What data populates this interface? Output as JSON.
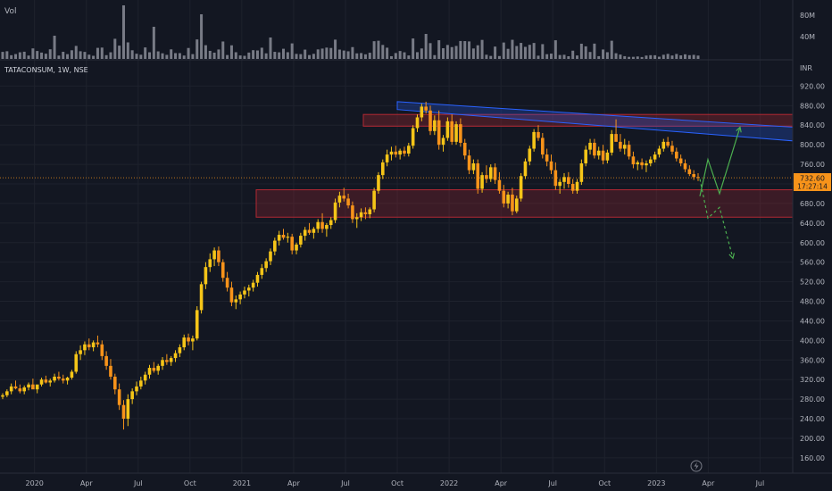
{
  "volume_pane": {
    "label": "Vol",
    "scale_labels": [
      "80M",
      "40M"
    ]
  },
  "symbol_label": "TATACONSUM, 1W, NSE",
  "currency_label": "INR",
  "price_axis": {
    "ticks": [
      920,
      880,
      840,
      800,
      760,
      720,
      680,
      640,
      600,
      560,
      520,
      480,
      440,
      400,
      360,
      320,
      280,
      240,
      200,
      160
    ],
    "tick_labels": [
      "920.00",
      "880.00",
      "840.00",
      "800.00",
      "760.00",
      "720.00",
      "680.00",
      "640.00",
      "600.00",
      "560.00",
      "520.00",
      "480.00",
      "440.00",
      "400.00",
      "360.00",
      "320.00",
      "280.00",
      "240.00",
      "200.00",
      "160.00"
    ]
  },
  "last_price": {
    "value": "732.60",
    "countdown": "17:27:14"
  },
  "time_axis": {
    "labels": [
      "2020",
      "Apr",
      "Jul",
      "Oct",
      "2021",
      "Apr",
      "Jul",
      "Oct",
      "2022",
      "Apr",
      "Jul",
      "Oct",
      "2023",
      "Apr",
      "Jul"
    ]
  },
  "colors": {
    "background": "#131722",
    "grid": "#1e222d",
    "text": "#b2b5be",
    "candle_up": "#f5c518",
    "candle_down": "#f7931a",
    "volume": "#787b86",
    "channel": "#2962ff",
    "zone": "#b22833",
    "bull_path": "#4caf50",
    "bear_path": "#4caf50",
    "last_price_line": "#f7931a"
  },
  "chart_data": {
    "type": "candlestick",
    "timeframe": "1W",
    "y_unit": "INR",
    "ylim": [
      140,
      940
    ],
    "x_range": [
      "2019-11",
      "2023-08"
    ],
    "candles_ohlc": [
      [
        285,
        292,
        280,
        288
      ],
      [
        288,
        300,
        284,
        296
      ],
      [
        296,
        312,
        290,
        306
      ],
      [
        306,
        318,
        300,
        302
      ],
      [
        302,
        310,
        292,
        296
      ],
      [
        296,
        308,
        290,
        304
      ],
      [
        304,
        314,
        298,
        310
      ],
      [
        310,
        322,
        304,
        300
      ],
      [
        300,
        308,
        292,
        310
      ],
      [
        310,
        324,
        306,
        320
      ],
      [
        320,
        328,
        312,
        314
      ],
      [
        314,
        322,
        306,
        318
      ],
      [
        318,
        332,
        314,
        326
      ],
      [
        326,
        336,
        318,
        322
      ],
      [
        322,
        330,
        312,
        318
      ],
      [
        318,
        326,
        310,
        324
      ],
      [
        324,
        340,
        320,
        336
      ],
      [
        336,
        378,
        332,
        372
      ],
      [
        372,
        390,
        360,
        380
      ],
      [
        380,
        398,
        370,
        392
      ],
      [
        392,
        404,
        380,
        386
      ],
      [
        386,
        400,
        378,
        396
      ],
      [
        396,
        410,
        386,
        392
      ],
      [
        392,
        400,
        360,
        368
      ],
      [
        368,
        378,
        340,
        348
      ],
      [
        348,
        362,
        320,
        326
      ],
      [
        326,
        332,
        290,
        300
      ],
      [
        300,
        312,
        258,
        268
      ],
      [
        268,
        278,
        218,
        240
      ],
      [
        240,
        290,
        225,
        280
      ],
      [
        280,
        302,
        270,
        296
      ],
      [
        296,
        316,
        288,
        306
      ],
      [
        306,
        326,
        300,
        318
      ],
      [
        318,
        336,
        310,
        330
      ],
      [
        330,
        350,
        322,
        344
      ],
      [
        344,
        356,
        334,
        338
      ],
      [
        338,
        352,
        330,
        348
      ],
      [
        348,
        366,
        340,
        360
      ],
      [
        360,
        372,
        350,
        356
      ],
      [
        356,
        368,
        348,
        364
      ],
      [
        364,
        380,
        356,
        374
      ],
      [
        374,
        392,
        366,
        386
      ],
      [
        386,
        412,
        380,
        406
      ],
      [
        406,
        414,
        390,
        398
      ],
      [
        398,
        410,
        380,
        404
      ],
      [
        404,
        470,
        400,
        462
      ],
      [
        462,
        520,
        455,
        515
      ],
      [
        515,
        560,
        505,
        550
      ],
      [
        550,
        578,
        540,
        566
      ],
      [
        566,
        590,
        552,
        584
      ],
      [
        584,
        592,
        552,
        560
      ],
      [
        560,
        566,
        520,
        528
      ],
      [
        528,
        540,
        500,
        508
      ],
      [
        508,
        520,
        470,
        478
      ],
      [
        478,
        492,
        464,
        484
      ],
      [
        484,
        500,
        474,
        494
      ],
      [
        494,
        510,
        486,
        502
      ],
      [
        502,
        514,
        490,
        508
      ],
      [
        508,
        524,
        500,
        518
      ],
      [
        518,
        540,
        510,
        534
      ],
      [
        534,
        556,
        526,
        548
      ],
      [
        548,
        568,
        540,
        562
      ],
      [
        562,
        588,
        554,
        582
      ],
      [
        582,
        610,
        574,
        604
      ],
      [
        604,
        624,
        594,
        616
      ],
      [
        616,
        628,
        606,
        610
      ],
      [
        610,
        620,
        600,
        612
      ],
      [
        612,
        618,
        576,
        584
      ],
      [
        584,
        600,
        576,
        596
      ],
      [
        596,
        620,
        590,
        614
      ],
      [
        614,
        632,
        604,
        626
      ],
      [
        626,
        640,
        616,
        620
      ],
      [
        620,
        632,
        608,
        628
      ],
      [
        628,
        648,
        620,
        642
      ],
      [
        642,
        660,
        620,
        628
      ],
      [
        628,
        640,
        612,
        636
      ],
      [
        636,
        652,
        628,
        646
      ],
      [
        646,
        690,
        640,
        682
      ],
      [
        682,
        704,
        672,
        696
      ],
      [
        696,
        712,
        684,
        690
      ],
      [
        690,
        700,
        670,
        676
      ],
      [
        676,
        684,
        640,
        648
      ],
      [
        648,
        660,
        630,
        652
      ],
      [
        652,
        670,
        644,
        662
      ],
      [
        662,
        672,
        648,
        658
      ],
      [
        658,
        672,
        650,
        668
      ],
      [
        668,
        712,
        662,
        706
      ],
      [
        706,
        744,
        700,
        738
      ],
      [
        738,
        770,
        730,
        764
      ],
      [
        764,
        790,
        756,
        780
      ],
      [
        780,
        796,
        768,
        786
      ],
      [
        786,
        798,
        774,
        780
      ],
      [
        780,
        792,
        770,
        788
      ],
      [
        788,
        796,
        776,
        782
      ],
      [
        782,
        804,
        776,
        798
      ],
      [
        798,
        840,
        792,
        834
      ],
      [
        834,
        862,
        826,
        856
      ],
      [
        856,
        884,
        848,
        878
      ],
      [
        878,
        888,
        864,
        870
      ],
      [
        870,
        880,
        820,
        828
      ],
      [
        828,
        860,
        820,
        850
      ],
      [
        850,
        870,
        790,
        800
      ],
      [
        800,
        820,
        786,
        814
      ],
      [
        814,
        856,
        808,
        848
      ],
      [
        848,
        862,
        800,
        806
      ],
      [
        806,
        848,
        800,
        842
      ],
      [
        842,
        854,
        796,
        804
      ],
      [
        804,
        812,
        770,
        778
      ],
      [
        778,
        790,
        740,
        748
      ],
      [
        748,
        770,
        740,
        762
      ],
      [
        762,
        770,
        700,
        710
      ],
      [
        710,
        744,
        702,
        738
      ],
      [
        738,
        758,
        722,
        730
      ],
      [
        730,
        760,
        724,
        754
      ],
      [
        754,
        762,
        720,
        728
      ],
      [
        728,
        744,
        700,
        706
      ],
      [
        706,
        718,
        672,
        680
      ],
      [
        680,
        704,
        670,
        698
      ],
      [
        698,
        712,
        656,
        664
      ],
      [
        664,
        696,
        660,
        690
      ],
      [
        690,
        742,
        684,
        736
      ],
      [
        736,
        772,
        730,
        766
      ],
      [
        766,
        798,
        758,
        792
      ],
      [
        792,
        832,
        786,
        826
      ],
      [
        826,
        840,
        808,
        814
      ],
      [
        814,
        824,
        772,
        780
      ],
      [
        780,
        792,
        756,
        766
      ],
      [
        766,
        780,
        740,
        748
      ],
      [
        748,
        764,
        708,
        716
      ],
      [
        716,
        730,
        700,
        724
      ],
      [
        724,
        742,
        710,
        734
      ],
      [
        734,
        744,
        712,
        720
      ],
      [
        720,
        730,
        700,
        706
      ],
      [
        706,
        730,
        700,
        724
      ],
      [
        724,
        770,
        718,
        762
      ],
      [
        762,
        798,
        756,
        790
      ],
      [
        790,
        812,
        780,
        804
      ],
      [
        804,
        812,
        772,
        778
      ],
      [
        778,
        796,
        770,
        788
      ],
      [
        788,
        800,
        760,
        768
      ],
      [
        768,
        790,
        762,
        784
      ],
      [
        784,
        830,
        778,
        822
      ],
      [
        822,
        852,
        814,
        806
      ],
      [
        806,
        822,
        786,
        792
      ],
      [
        792,
        812,
        780,
        800
      ],
      [
        800,
        808,
        770,
        776
      ],
      [
        776,
        786,
        752,
        760
      ],
      [
        760,
        768,
        748,
        764
      ],
      [
        764,
        772,
        750,
        758
      ],
      [
        758,
        768,
        744,
        762
      ],
      [
        762,
        776,
        756,
        770
      ],
      [
        770,
        786,
        764,
        780
      ],
      [
        780,
        798,
        774,
        792
      ],
      [
        792,
        812,
        786,
        806
      ],
      [
        806,
        816,
        794,
        798
      ],
      [
        798,
        808,
        780,
        786
      ],
      [
        786,
        794,
        766,
        772
      ],
      [
        772,
        780,
        756,
        762
      ],
      [
        762,
        770,
        744,
        750
      ],
      [
        750,
        758,
        736,
        740
      ],
      [
        740,
        748,
        728,
        734
      ],
      [
        734,
        742,
        726,
        732.6
      ]
    ],
    "volume_scale": {
      "max_label": "80M",
      "mid_label": "40M"
    },
    "last_price": 732.6,
    "annotations": {
      "descending_channel": {
        "upper": [
          [
            "2021-08",
            888
          ],
          [
            "2023-08",
            836
          ]
        ],
        "lower": [
          [
            "2021-08",
            872
          ],
          [
            "2023-08",
            808
          ]
        ]
      },
      "resistance_zone": {
        "from": 838,
        "to": 862,
        "start": "2021-08"
      },
      "support_zone": {
        "from": 652,
        "to": 708,
        "start": "2021-01"
      },
      "bullish_projection": [
        [
          "2023-02",
          695
        ],
        [
          "2023-03",
          770
        ],
        [
          "2023-04",
          700
        ],
        [
          "2023-05",
          836
        ]
      ],
      "bearish_projection": [
        [
          "2023-02",
          730
        ],
        [
          "2023-03",
          650
        ],
        [
          "2023-04",
          672
        ],
        [
          "2023-05",
          568
        ]
      ]
    }
  }
}
